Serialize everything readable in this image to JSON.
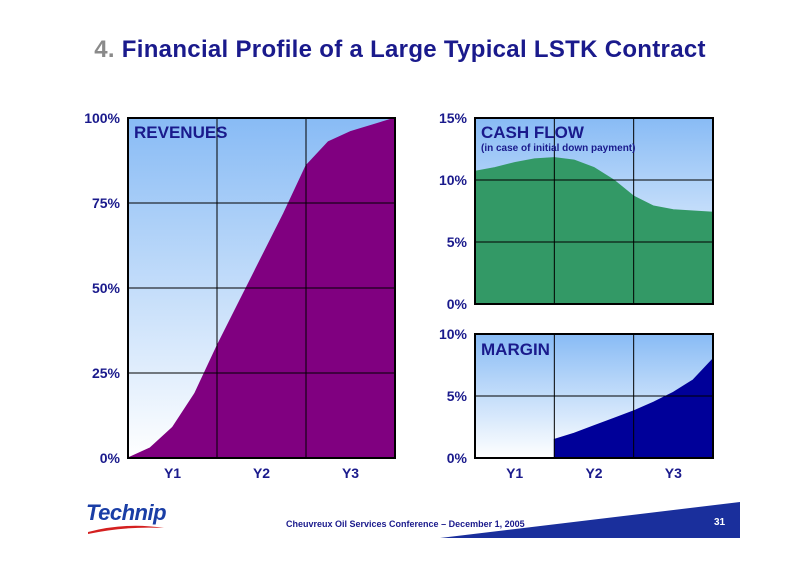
{
  "title": {
    "number": "4.",
    "text": "Financial Profile of a Large Typical LSTK Contract"
  },
  "footer": {
    "conference": "Cheuvreux Oil Services Conference – December 1, 2005",
    "page": "31"
  },
  "logo": {
    "text": "Technip"
  },
  "colors": {
    "title": "#1a1a8c",
    "revenues_fill": "#800080",
    "cash_flow_fill": "#339966",
    "margin_fill": "#000099",
    "panel_top": "#99ccff",
    "panel_bottom": "#ffffff"
  },
  "chart_data": [
    {
      "type": "area",
      "label": "REVENUES",
      "x_ticks": [
        "Y1",
        "Y2",
        "Y3"
      ],
      "xlim": [
        0,
        3
      ],
      "y_ticks": [
        "0%",
        "25%",
        "50%",
        "75%",
        "100%"
      ],
      "ylim": [
        0,
        100
      ],
      "x": [
        0,
        0.25,
        0.5,
        0.75,
        1.0,
        1.25,
        1.5,
        1.75,
        2.0,
        2.25,
        2.5,
        2.75,
        3.0
      ],
      "y": [
        0,
        3,
        9,
        19,
        33,
        46,
        59,
        72,
        86,
        93,
        96,
        98,
        100
      ]
    },
    {
      "type": "area",
      "label": "CASH FLOW",
      "sublabel": "(in case of initial down payment)",
      "y_ticks": [
        "0%",
        "5%",
        "10%",
        "15%"
      ],
      "ylim": [
        0,
        15
      ],
      "xlim": [
        0,
        3
      ],
      "x": [
        0,
        0.25,
        0.5,
        0.75,
        1.0,
        1.25,
        1.5,
        1.75,
        2.0,
        2.25,
        2.5,
        2.75,
        3.0
      ],
      "y": [
        10.7,
        11.0,
        11.4,
        11.7,
        11.8,
        11.6,
        11.0,
        10.0,
        8.7,
        7.9,
        7.6,
        7.5,
        7.4
      ]
    },
    {
      "type": "area",
      "label": "MARGIN",
      "x_ticks": [
        "Y1",
        "Y2",
        "Y3"
      ],
      "xlim": [
        0,
        3
      ],
      "y_ticks": [
        "0%",
        "5%",
        "10%"
      ],
      "ylim": [
        0,
        10
      ],
      "x": [
        1.0,
        1.25,
        1.5,
        1.75,
        2.0,
        2.25,
        2.5,
        2.75,
        3.0
      ],
      "y": [
        1.5,
        2.0,
        2.6,
        3.2,
        3.8,
        4.5,
        5.3,
        6.3,
        8.0
      ]
    }
  ]
}
